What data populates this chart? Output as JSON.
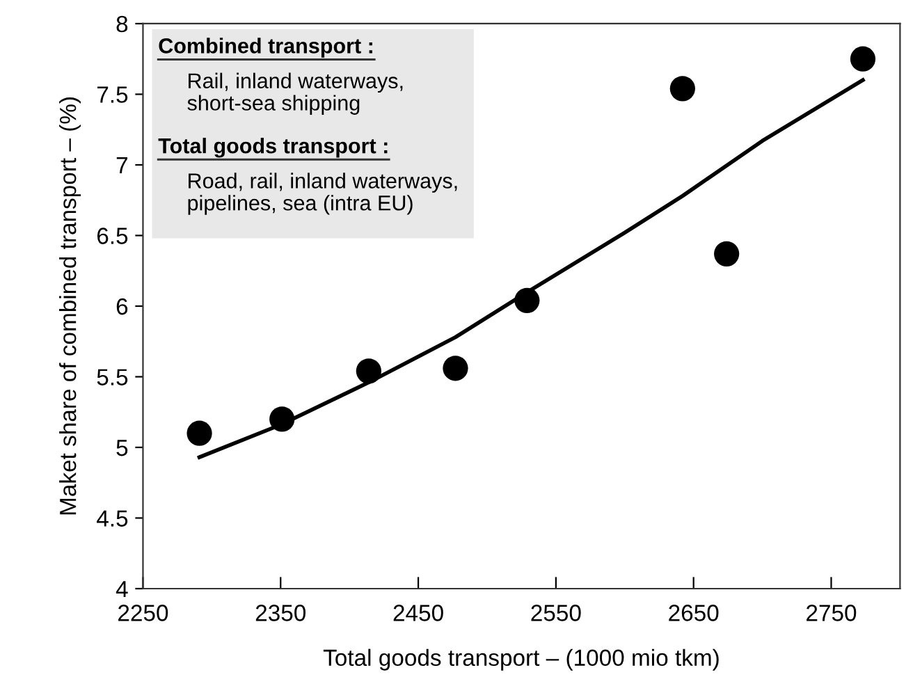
{
  "chart_data": {
    "type": "scatter",
    "xlabel": "Total goods transport – (1000 mio tkm)",
    "ylabel": "Maket share of combined transport – (%)",
    "annotations": [
      "Combined transport :",
      "Rail, inland waterways,\nshort-sea shipping",
      "Total goods transport :",
      "Road, rail, inland waterways,\npipelines, sea (intra EU)"
    ],
    "series": [
      {
        "color": "#000000",
        "marker": "circle",
        "x": [
          2291,
          2351,
          2414,
          2477,
          2529,
          2642,
          2674,
          2773
        ],
        "values": [
          5.1,
          5.2,
          5.54,
          5.56,
          6.04,
          7.54,
          6.37,
          7.75
        ]
      },
      {
        "type": "line",
        "color": "#000000",
        "marker": "none",
        "line_style": "solid",
        "x": [
          2291,
          2350,
          2414,
          2477,
          2531,
          2600,
          2642,
          2700,
          2773
        ],
        "values": [
          4.93,
          5.16,
          5.46,
          5.78,
          6.11,
          6.52,
          6.78,
          7.17,
          7.6
        ]
      }
    ],
    "xlim": [
      2250,
      2800
    ],
    "xticks": [
      2250,
      2350,
      2450,
      2550,
      2650,
      2750
    ],
    "ylim": [
      4,
      8
    ],
    "yticks": [
      4,
      4.5,
      5,
      5.5,
      6,
      6.5,
      7,
      7.5,
      8
    ],
    "grid": false,
    "legend": false
  }
}
